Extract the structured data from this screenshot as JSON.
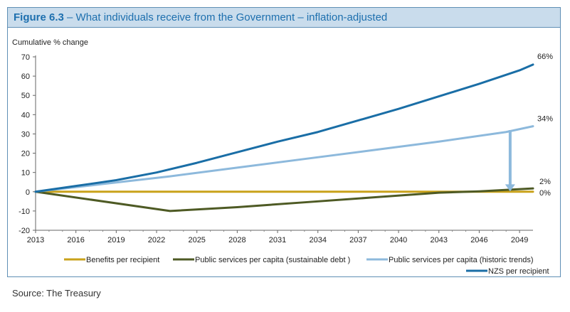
{
  "figure": {
    "label": "Figure 6.3",
    "title": " – What individuals receive from the Government – inflation-adjusted"
  },
  "source": "Source: The Treasury",
  "chart_data": {
    "type": "line",
    "ylabel": "Cumulative % change",
    "xlim": [
      2013,
      2050
    ],
    "ylim": [
      -20,
      70
    ],
    "x_ticks": [
      2013,
      2016,
      2019,
      2022,
      2025,
      2028,
      2031,
      2034,
      2037,
      2040,
      2043,
      2046,
      2049
    ],
    "y_ticks": [
      -20,
      -10,
      0,
      10,
      20,
      30,
      40,
      50,
      60,
      70
    ],
    "grid": false,
    "legend_position": "bottom",
    "series": [
      {
        "name": "Benefits per recipient",
        "color": "#c9a21a",
        "x": [
          2013,
          2050
        ],
        "y": [
          0,
          0
        ],
        "end_label": "0%"
      },
      {
        "name": "Public services per capita (sustainable debt )",
        "color": "#4e5a24",
        "x": [
          2013,
          2023,
          2028,
          2033,
          2038,
          2043,
          2046,
          2050
        ],
        "y": [
          0,
          -10,
          -8,
          -5.5,
          -3,
          -0.5,
          0.2,
          1.7
        ],
        "end_label": "2%"
      },
      {
        "name": "Public services per capita (historic trends)",
        "color": "#8db9dc",
        "x": [
          2013,
          2018,
          2023,
          2028,
          2033,
          2038,
          2043,
          2048,
          2050
        ],
        "y": [
          0,
          4,
          8,
          12.5,
          17,
          21.5,
          26,
          31,
          34
        ],
        "end_label": "34%"
      },
      {
        "name": "NZS per recipient",
        "color": "#1a6ea6",
        "x": [
          2013,
          2016,
          2019,
          2022,
          2025,
          2028,
          2031,
          2034,
          2037,
          2040,
          2043,
          2046,
          2049,
          2050
        ],
        "y": [
          0,
          3,
          6,
          10,
          15,
          20.5,
          26,
          31,
          37,
          43,
          49.5,
          56,
          63,
          66
        ],
        "end_label": "66%"
      }
    ],
    "annotation": {
      "type": "arrow",
      "x": 2048.3,
      "from_y": 32,
      "to_y": 0.5,
      "color": "#8db9dc"
    }
  }
}
